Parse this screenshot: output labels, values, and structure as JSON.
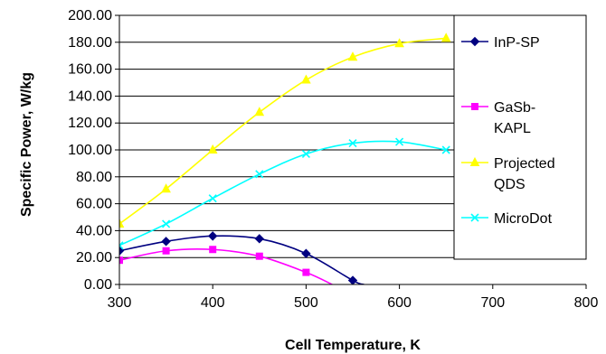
{
  "chart_data": {
    "type": "line",
    "xlabel": "Cell Temperature, K",
    "ylabel": "Specific Power, W/kg",
    "xlim": [
      300,
      800
    ],
    "ylim": [
      0,
      200
    ],
    "x_ticks": [
      "300",
      "400",
      "500",
      "600",
      "700",
      "800"
    ],
    "y_ticks": [
      "0.00",
      "20.00",
      "40.00",
      "60.00",
      "80.00",
      "100.00",
      "120.00",
      "140.00",
      "160.00",
      "180.00",
      "200.00"
    ],
    "grid": "horizontal",
    "legend_position": "right",
    "series": [
      {
        "name": "InP-SP",
        "legend_lines": [
          "InP-SP"
        ],
        "color": "#000080",
        "marker": "diamond",
        "x": [
          300,
          350,
          400,
          450,
          500,
          550
        ],
        "y": [
          25,
          32,
          36,
          34,
          23,
          3
        ],
        "curve_end": [
          562,
          0
        ]
      },
      {
        "name": "GaSb-KAPL",
        "legend_lines": [
          "GaSb-",
          "KAPL"
        ],
        "color": "#ff00ff",
        "marker": "square",
        "x": [
          300,
          350,
          400,
          450,
          500
        ],
        "y": [
          18,
          25,
          26,
          21,
          9
        ],
        "curve_end": [
          528,
          0
        ]
      },
      {
        "name": "Projected QDS",
        "legend_lines": [
          "Projected",
          "QDS"
        ],
        "color": "#ffff00",
        "marker": "triangle",
        "x": [
          300,
          350,
          400,
          450,
          500,
          550,
          600,
          650
        ],
        "y": [
          45,
          71,
          100,
          128,
          152,
          169,
          179,
          183
        ]
      },
      {
        "name": "MicroDot",
        "legend_lines": [
          "MicroDot"
        ],
        "color": "#00ffff",
        "marker": "x",
        "x": [
          300,
          350,
          400,
          450,
          500,
          550,
          600,
          650
        ],
        "y": [
          29,
          45,
          64,
          82,
          97,
          105,
          106,
          100
        ]
      }
    ]
  }
}
